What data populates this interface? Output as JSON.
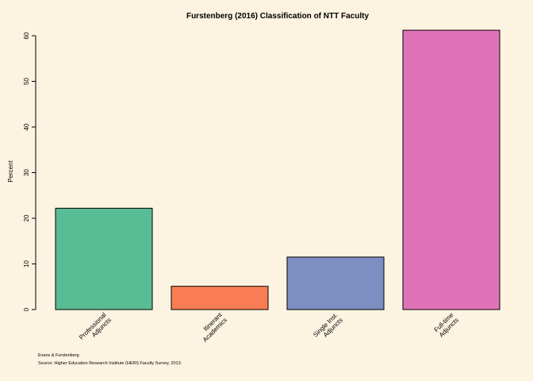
{
  "chart_data": {
    "type": "bar",
    "title": "Furstenberg (2016) Classification of NTT Faculty",
    "ylabel": "Percent",
    "xlabel": "",
    "ylim": [
      0,
      60
    ],
    "yticks": [
      "0",
      "10",
      "20",
      "30",
      "40",
      "50",
      "60"
    ],
    "grid": false,
    "categories": [
      [
        "Professional",
        "Adjuncts"
      ],
      [
        "Itinerant",
        "Academics"
      ],
      [
        "Single Inst.",
        "Adjuncts"
      ],
      [
        "Full-time",
        "Adjuncts"
      ]
    ],
    "values": [
      22.2,
      5.1,
      11.5,
      61.2
    ],
    "colors": [
      "#5ABC94",
      "#F97D54",
      "#7D8FC2",
      "#E073B7"
    ],
    "captions": [
      "Evans & Furstenberg",
      "Source: Higher Education Research Institute (HERI) Faculty Survey, 2013."
    ]
  }
}
